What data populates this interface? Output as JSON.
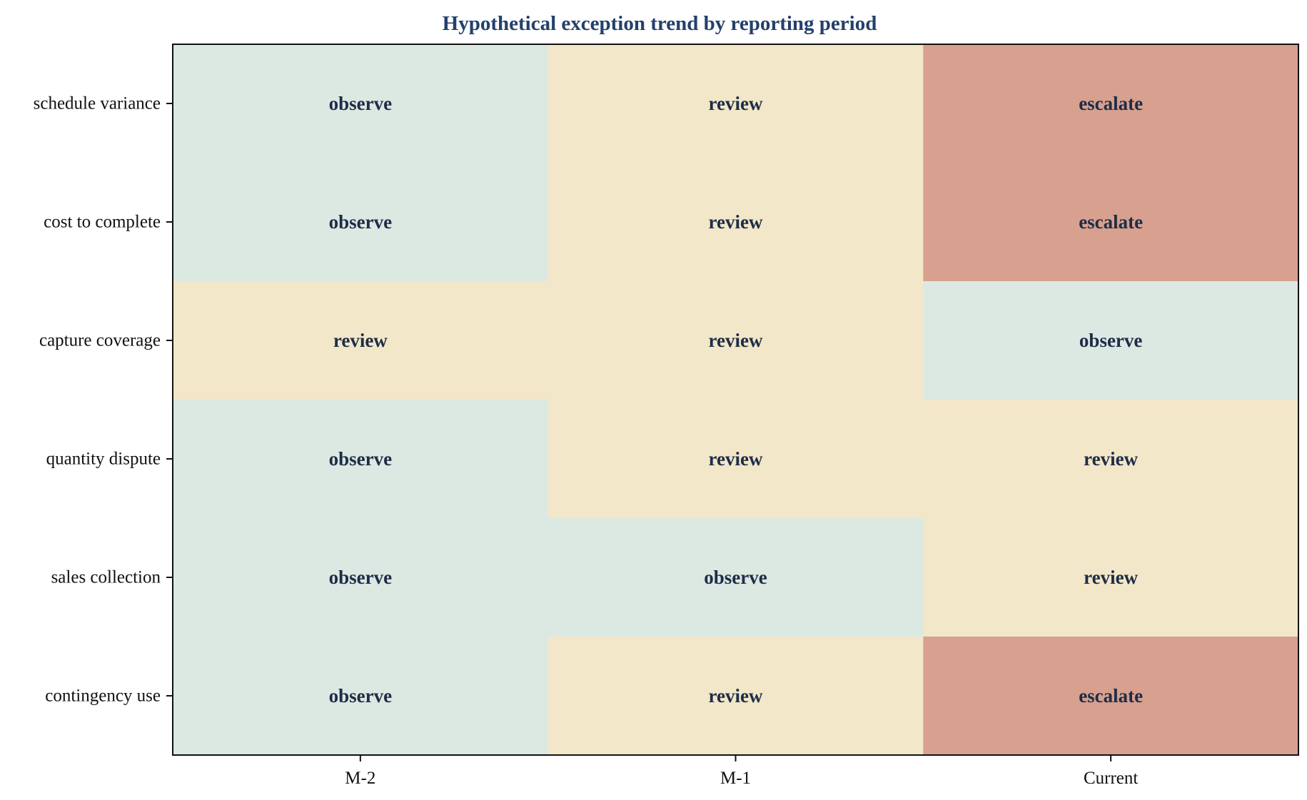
{
  "chart_data": {
    "type": "heatmap",
    "title": "Hypothetical exception trend by reporting period",
    "xlabel": "",
    "ylabel": "",
    "columns": [
      "M-2",
      "M-1",
      "Current"
    ],
    "rows": [
      "schedule variance",
      "cost to complete",
      "capture coverage",
      "quantity dispute",
      "sales collection",
      "contingency use"
    ],
    "cells": [
      [
        "observe",
        "review",
        "escalate"
      ],
      [
        "observe",
        "review",
        "escalate"
      ],
      [
        "review",
        "review",
        "observe"
      ],
      [
        "observe",
        "review",
        "review"
      ],
      [
        "observe",
        "observe",
        "review"
      ],
      [
        "observe",
        "review",
        "escalate"
      ]
    ],
    "levels": [
      "observe",
      "review",
      "escalate"
    ],
    "level_colors": {
      "observe": "#dce8e2",
      "review": "#f2e7c9",
      "escalate": "#d8a08e"
    },
    "colors": {
      "title": "#24406b",
      "cell_text": "#1e2d47",
      "axis": "#111111"
    },
    "grid": false,
    "legend": "none"
  }
}
